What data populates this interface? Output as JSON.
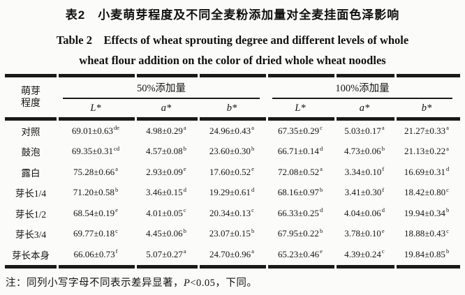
{
  "title": {
    "zh": "表2　小麦萌芽程度及不同全麦粉添加量对全麦挂面色泽影响",
    "en_lines": [
      "Table 2　Effects of wheat sprouting degree and different levels of whole",
      "wheat flour addition on the color of dried whole wheat noodles"
    ]
  },
  "table": {
    "corner": [
      "萌芽",
      "程度"
    ],
    "groups": [
      {
        "label": "50%添加量"
      },
      {
        "label": "100%添加量"
      }
    ],
    "subheaders": [
      "L*",
      "a*",
      "b*",
      "L*",
      "a*",
      "b*"
    ],
    "rows": [
      {
        "label": "对照",
        "cells": [
          {
            "v": "69.01±0.63",
            "s": "de"
          },
          {
            "v": "4.98±0.29",
            "s": "a"
          },
          {
            "v": "24.96±0.43",
            "s": "a"
          },
          {
            "v": "67.35±0.29",
            "s": "c"
          },
          {
            "v": "5.03±0.17",
            "s": "a"
          },
          {
            "v": "21.27±0.33",
            "s": "a"
          }
        ]
      },
      {
        "label": "鼓泡",
        "cells": [
          {
            "v": "69.35±0.31",
            "s": "cd"
          },
          {
            "v": "4.57±0.08",
            "s": "b"
          },
          {
            "v": "23.60±0.30",
            "s": "b"
          },
          {
            "v": "66.71±0.14",
            "s": "d"
          },
          {
            "v": "4.73±0.06",
            "s": "b"
          },
          {
            "v": "21.13±0.22",
            "s": "a"
          }
        ]
      },
      {
        "label": "露白",
        "cells": [
          {
            "v": "75.28±0.66",
            "s": "a"
          },
          {
            "v": "2.93±0.09",
            "s": "e"
          },
          {
            "v": "17.60±0.52",
            "s": "e"
          },
          {
            "v": "72.08±0.52",
            "s": "a"
          },
          {
            "v": "3.34±0.10",
            "s": "f"
          },
          {
            "v": "16.69±0.31",
            "s": "d"
          }
        ]
      },
      {
        "label": "芽长1/4",
        "cells": [
          {
            "v": "71.20±0.58",
            "s": "b"
          },
          {
            "v": "3.46±0.15",
            "s": "d"
          },
          {
            "v": "19.29±0.61",
            "s": "d"
          },
          {
            "v": "68.16±0.97",
            "s": "b"
          },
          {
            "v": "3.41±0.30",
            "s": "f"
          },
          {
            "v": "18.42±0.80",
            "s": "c"
          }
        ]
      },
      {
        "label": "芽长1/2",
        "cells": [
          {
            "v": "68.54±0.19",
            "s": "e"
          },
          {
            "v": "4.01±0.05",
            "s": "c"
          },
          {
            "v": "20.34±0.13",
            "s": "c"
          },
          {
            "v": "66.33±0.25",
            "s": "d"
          },
          {
            "v": "4.04±0.06",
            "s": "d"
          },
          {
            "v": "19.94±0.34",
            "s": "b"
          }
        ]
      },
      {
        "label": "芽长3/4",
        "cells": [
          {
            "v": "69.77±0.18",
            "s": "c"
          },
          {
            "v": "4.45±0.06",
            "s": "b"
          },
          {
            "v": "23.07±0.15",
            "s": "b"
          },
          {
            "v": "67.95±0.22",
            "s": "b"
          },
          {
            "v": "3.78±0.10",
            "s": "e"
          },
          {
            "v": "18.88±0.43",
            "s": "c"
          }
        ]
      },
      {
        "label": "芽长本身",
        "cells": [
          {
            "v": "66.06±0.73",
            "s": "f"
          },
          {
            "v": "5.07±0.27",
            "s": "a"
          },
          {
            "v": "24.70±0.96",
            "s": "a"
          },
          {
            "v": "65.23±0.46",
            "s": "e"
          },
          {
            "v": "4.39±0.24",
            "s": "c"
          },
          {
            "v": "19.84±0.85",
            "s": "b"
          }
        ]
      }
    ]
  },
  "footnote": {
    "prefix": "注：同列小写字母不同表示差异显著，",
    "p": "P",
    "suffix": "<0.05，下同。"
  }
}
